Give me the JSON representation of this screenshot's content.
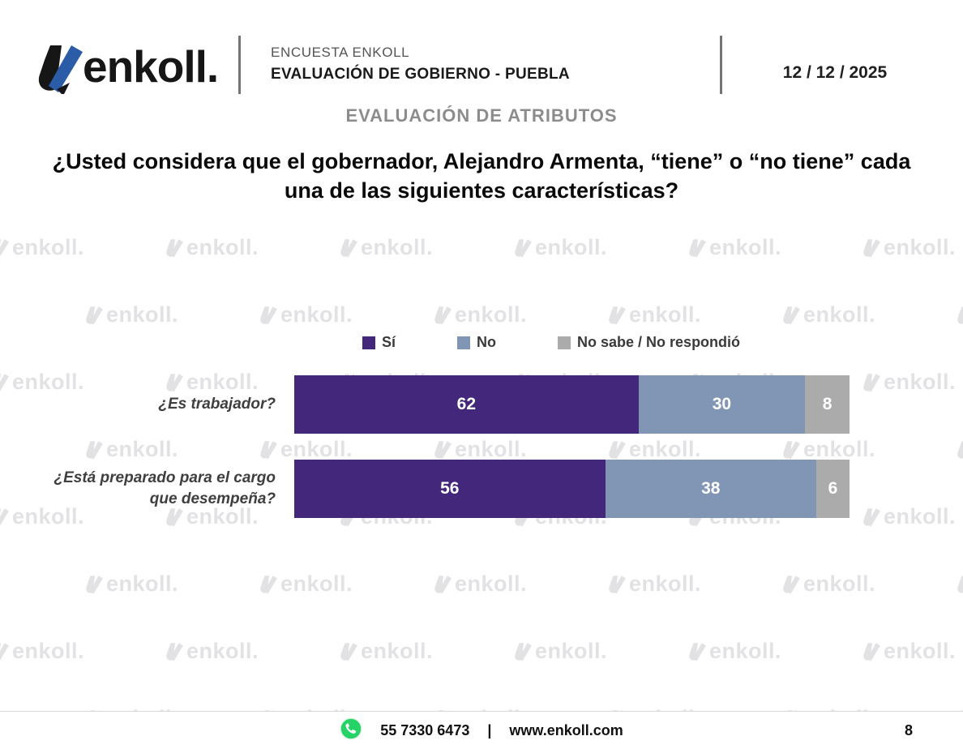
{
  "header": {
    "logo_text": "enkoll.",
    "survey_label": "ENCUESTA ENKOLL",
    "survey_title": "EVALUACIÓN DE GOBIERNO - PUEBLA",
    "date": "12 / 12 / 2025"
  },
  "section_title": "EVALUACIÓN DE ATRIBUTOS",
  "question": "¿Usted considera que el gobernador, Alejandro Armenta, “tiene” o “no tiene” cada una de las siguientes características?",
  "watermark": {
    "text": "enkoll."
  },
  "chart_data": {
    "type": "bar",
    "orientation": "horizontal-stacked",
    "title": "",
    "categories": [
      "¿Es trabajador?",
      "¿Está preparado para el cargo que desempeña?"
    ],
    "series": [
      {
        "name": "Sí",
        "color": "#42277a",
        "values": [
          62,
          56
        ]
      },
      {
        "name": "No",
        "color": "#8096b4",
        "values": [
          30,
          38
        ]
      },
      {
        "name": "No sabe / No respondió",
        "color": "#ababab",
        "values": [
          8,
          6
        ]
      }
    ],
    "value_range": [
      0,
      100
    ],
    "legend_position": "top",
    "value_labels": "inside-white"
  },
  "footer": {
    "phone": "55 7330 6473",
    "separator": "|",
    "website": "www.enkoll.com",
    "page_number": "8"
  },
  "colors": {
    "logo_blue": "#2b5ca8",
    "logo_black": "#161616",
    "watermark_gray": "#e2e2e5",
    "whatsapp_green": "#25d366"
  }
}
